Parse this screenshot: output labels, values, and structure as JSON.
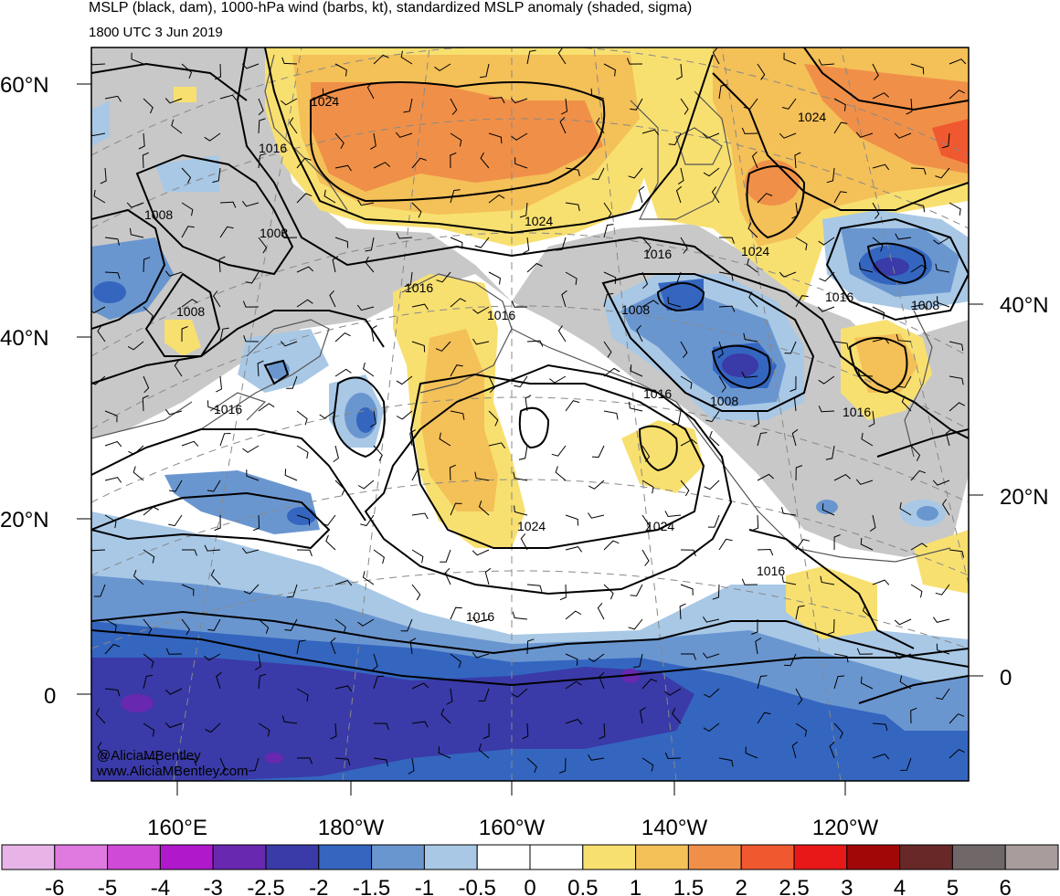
{
  "header": {
    "title": "MSLP (black, dam), 1000-hPa wind (barbs, kt), standardized MSLP anomaly (shaded, sigma)",
    "valid_time": "1800 UTC 3 Jun 2019"
  },
  "axes": {
    "lat_labels_left": [
      "60°N",
      "40°N",
      "20°N",
      "0"
    ],
    "lat_labels_right": [
      "40°N",
      "20°N",
      "0"
    ],
    "lon_labels": [
      "160°E",
      "180°W",
      "160°W",
      "140°W",
      "120°W"
    ]
  },
  "isobar_labels": [
    "1024",
    "1016",
    "1008",
    "1008",
    "1008",
    "1016",
    "1016",
    "1016",
    "1024",
    "1016",
    "1008",
    "1016",
    "1008",
    "1024",
    "1024",
    "1016",
    "1008",
    "1016",
    "1024",
    "1024",
    "1016",
    "1016"
  ],
  "credit": {
    "line1": "@AliciaMBentley",
    "line2": "www.AliciaMBentley.com"
  },
  "colorbar": {
    "labels": [
      "-6",
      "-5",
      "-4",
      "-3",
      "-2.5",
      "-2",
      "-1.5",
      "-1",
      "-0.5",
      "0",
      "0.5",
      "1",
      "1.5",
      "2",
      "2.5",
      "3",
      "4",
      "5",
      "6"
    ],
    "colors": [
      "#e8b4e8",
      "#e07ae0",
      "#d04ad8",
      "#b018cc",
      "#6828b0",
      "#3a3aa8",
      "#3466c0",
      "#6a96d0",
      "#a8c8e6",
      "#ffffff",
      "#ffffff",
      "#f8e070",
      "#f4c058",
      "#f09048",
      "#f05830",
      "#e81818",
      "#a00808",
      "#682828",
      "#706868",
      "#a89c9c"
    ]
  },
  "colors": {
    "land_neutral": "#c8c8c8",
    "coast": "#555555",
    "isobar": "#000000"
  }
}
